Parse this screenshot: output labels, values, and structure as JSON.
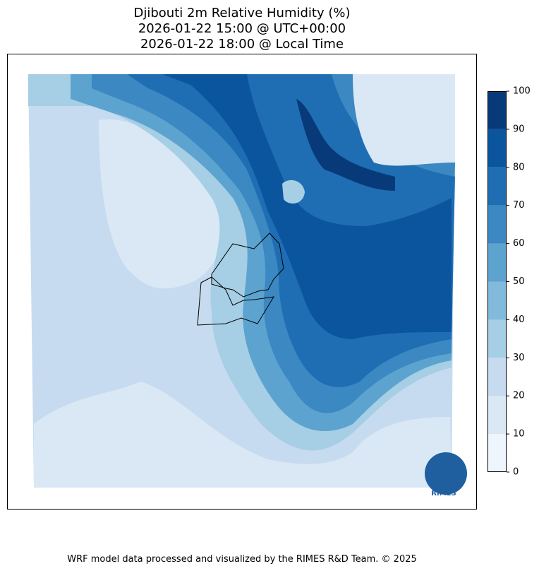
{
  "title": [
    "Djibouti 2m Relative Humidity (%)",
    "2026-01-22 15:00 @ UTC+00:00",
    "2026-01-22 18:00 @ Local Time"
  ],
  "colorbar": {
    "ticks": [
      0,
      10,
      20,
      30,
      40,
      50,
      60,
      70,
      80,
      90,
      100
    ],
    "colors": [
      "#eef5fc",
      "#dae8f6",
      "#c6dbef",
      "#a6cee4",
      "#82badb",
      "#5ca3d0",
      "#3b88c2",
      "#1f6eb3",
      "#0b559f",
      "#083a7a"
    ]
  },
  "logo_text": "RIMES",
  "footer": "WRF model data processed and visualized by the RIMES R&D Team. © 2025"
}
